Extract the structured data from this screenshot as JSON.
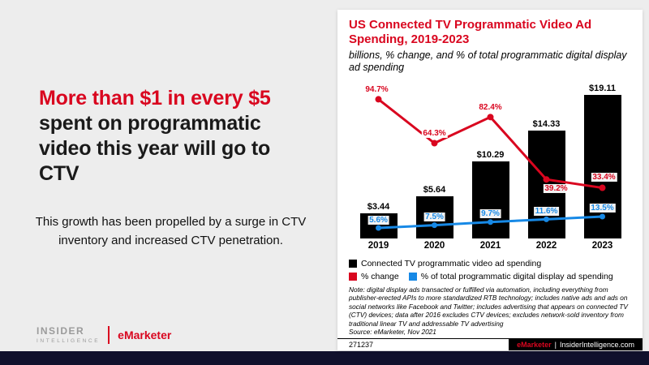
{
  "left_panel": {
    "headline_highlight": "More than $1 in every $5",
    "headline_rest": "spent on programmatic video this year will go to CTV",
    "body": "This growth has been propelled by a surge in CTV inventory and increased CTV penetration.",
    "logo": {
      "insider": "INSIDER",
      "intelligence": "INTELLIGENCE",
      "emarketer": "eMarketer"
    }
  },
  "chart_card": {
    "title": "US Connected TV Programmatic Video Ad Spending, 2019-2023",
    "subtitle": "billions, % change, and % of total programmatic digital display ad spending",
    "note": "Note: digital display ads transacted or fulfilled via automation, including everything from publisher-erected APIs to more standardized RTB technology; includes native ads and ads on social networks like Facebook and Twitter; includes advertising that appears on connected TV (CTV) devices; data after 2016 excludes CTV devices; excludes network-sold inventory from traditional linear TV and addressable TV advertising",
    "source": "Source: eMarketer, Nov 2021",
    "chart_id": "271237",
    "footer_brand": "eMarketer",
    "footer_separator": "|",
    "footer_site": "InsiderIntelligence.com"
  },
  "chart_data": {
    "type": "bar",
    "title": "US Connected TV Programmatic Video Ad Spending, 2019-2023",
    "subtitle": "billions, % change, and % of total programmatic digital display ad spending",
    "categories": [
      "2019",
      "2020",
      "2021",
      "2022",
      "2023"
    ],
    "series": [
      {
        "name": "Connected TV programmatic video ad spending",
        "type": "bar",
        "color": "#000000",
        "unit": "billions USD",
        "values": [
          3.44,
          5.64,
          10.29,
          14.33,
          19.11
        ],
        "labels": [
          "$3.44",
          "$5.64",
          "$10.29",
          "$14.33",
          "$19.11"
        ]
      },
      {
        "name": "% change",
        "type": "line",
        "color": "#d9061f",
        "unit": "%",
        "values": [
          94.7,
          64.3,
          82.4,
          39.2,
          33.4
        ],
        "labels": [
          "94.7%",
          "64.3%",
          "82.4%",
          "39.2%",
          "33.4%"
        ]
      },
      {
        "name": "% of total programmatic digital display ad spending",
        "type": "line",
        "color": "#1789e6",
        "unit": "%",
        "values": [
          5.6,
          7.5,
          9.7,
          11.6,
          13.5
        ],
        "labels": [
          "5.6%",
          "7.5%",
          "9.7%",
          "11.6%",
          "13.5%"
        ]
      }
    ],
    "legend_position": "bottom",
    "grid": false,
    "ylim_bars": [
      0,
      20
    ],
    "ylim_pct": [
      0,
      105
    ]
  }
}
